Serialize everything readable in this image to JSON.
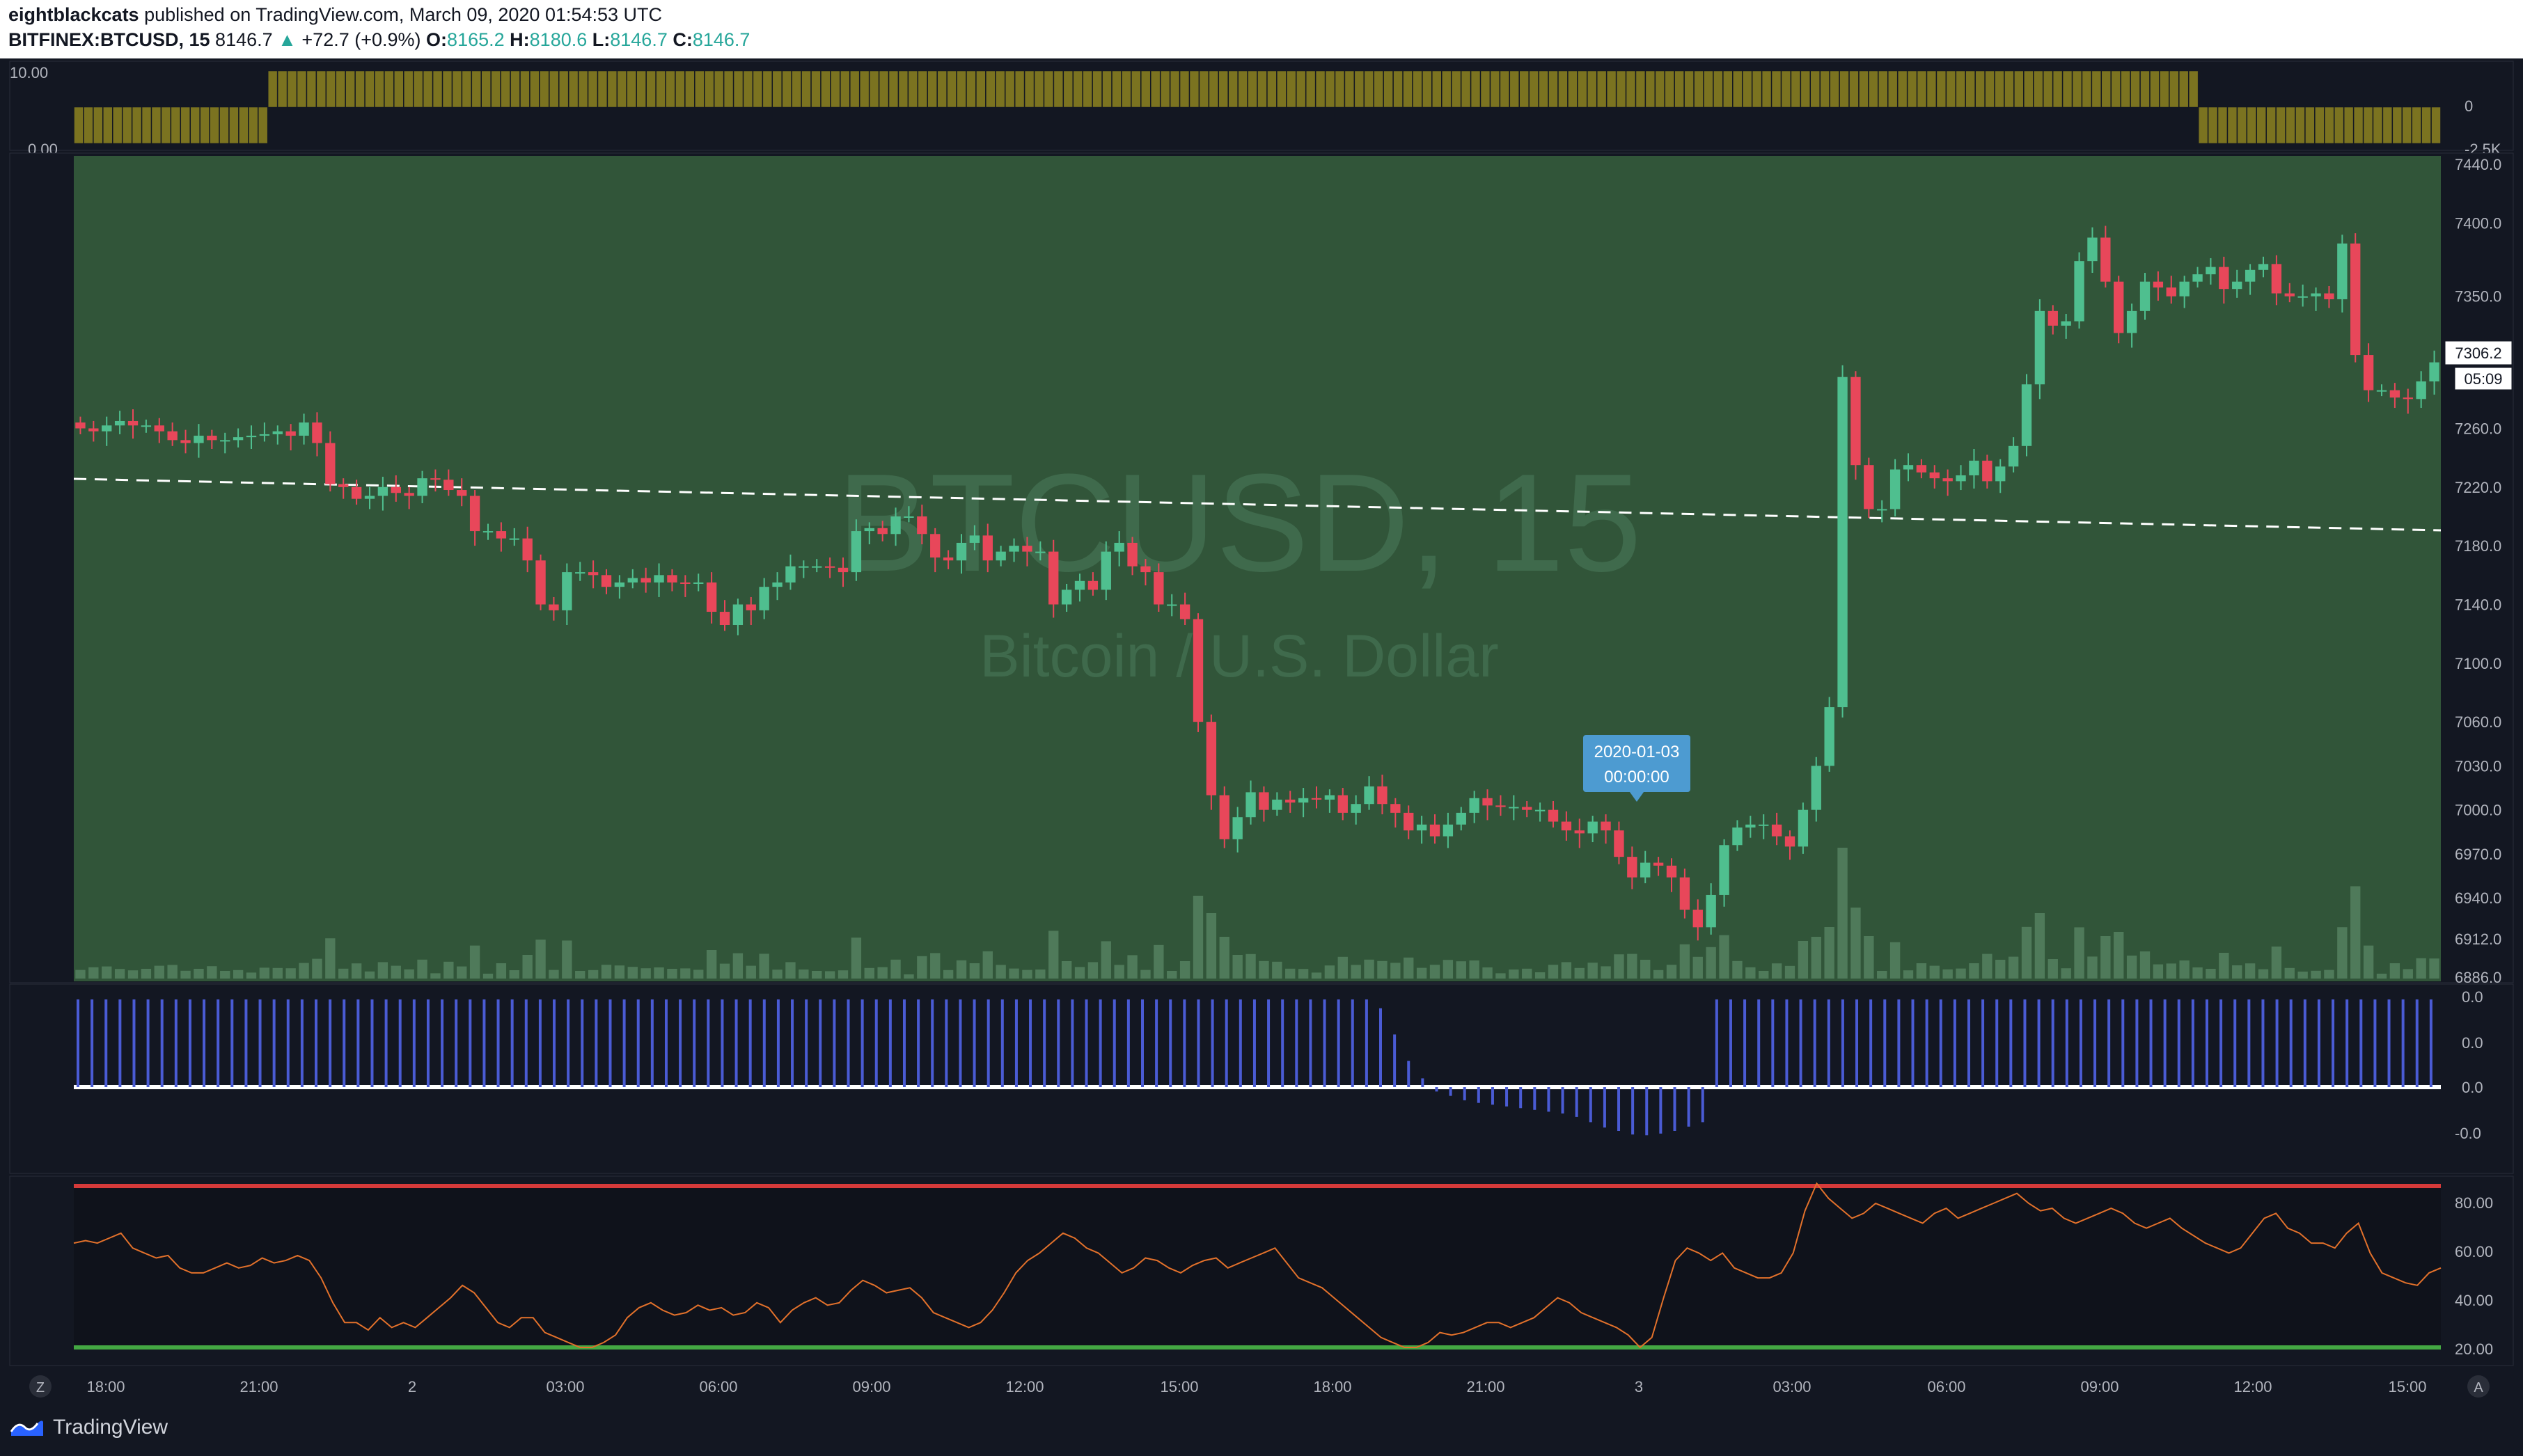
{
  "header": {
    "author": "eightblackcats",
    "published_text": "published on TradingView.com, March 09, 2020 01:54:53 UTC",
    "symbol": "BITFINEX:BTCUSD, 15",
    "price": "8146.7",
    "change_arrow": "▲",
    "change": "+72.7 (+0.9%)",
    "o_label": "O:",
    "o_value": "8165.2",
    "h_label": "H:",
    "h_value": "8180.6",
    "l_label": "L:",
    "l_value": "8146.7",
    "c_label": "C:",
    "c_value": "8146.7"
  },
  "watermark": {
    "symbol": "BTCUSD, 15",
    "description": "Bitcoin / U.S. Dollar"
  },
  "tooltip": {
    "date": "2020-01-03",
    "time": "00:00:00"
  },
  "price_tags": {
    "last_price": "7306.2",
    "countdown": "05:09"
  },
  "footer": {
    "logo_text": "TradingView",
    "z_button": "Z",
    "a_button": "A"
  },
  "colors": {
    "up": "#4fbf8f",
    "down": "#e8475a",
    "main_bg": "#315539",
    "osc_bar": "#7b7320",
    "histogram": "#4a5bd4",
    "rsi_line": "#e3712b",
    "rsi_upper": "#d63a3a",
    "rsi_lower": "#44a843"
  },
  "chart_data": [
    {
      "type": "bar",
      "title": "",
      "y_axis": {
        "ticks": [
          "10.00",
          "0.00",
          "0",
          "-2.5K"
        ]
      },
      "values": [
        -1.0,
        -1.0,
        -1.0,
        -1.0,
        -1.0,
        -1.0,
        -1.0,
        -1.0,
        -1.0,
        -1.0,
        -1.0,
        -1.0,
        -1.0,
        -1.0,
        -1.0,
        -1.0,
        -1.0,
        -1.0,
        -1.0,
        -1.0,
        1.0,
        1.0,
        1.0,
        1.0,
        1.0,
        1.0,
        1.0,
        1.0,
        1.0,
        1.0,
        1.0,
        1.0,
        1.0,
        1.0,
        1.0,
        1.0,
        1.0,
        1.0,
        1.0,
        1.0,
        1.0,
        1.0,
        1.0,
        1.0,
        1.0,
        1.0,
        1.0,
        1.0,
        1.0,
        1.0,
        1.0,
        1.0,
        1.0,
        1.0,
        1.0,
        1.0,
        1.0,
        1.0,
        1.0,
        1.0,
        1.0,
        1.0,
        1.0,
        1.0,
        1.0,
        1.0,
        1.0,
        1.0,
        1.0,
        1.0,
        1.0,
        1.0,
        1.0,
        1.0,
        1.0,
        1.0,
        1.0,
        1.0,
        1.0,
        1.0,
        1.0,
        1.0,
        1.0,
        1.0,
        1.0,
        1.0,
        1.0,
        1.0,
        1.0,
        1.0,
        1.0,
        1.0,
        1.0,
        1.0,
        1.0,
        1.0,
        1.0,
        1.0,
        1.0,
        1.0,
        1.0,
        1.0,
        1.0,
        1.0,
        1.0,
        1.0,
        1.0,
        1.0,
        1.0,
        1.0,
        1.0,
        1.0,
        1.0,
        1.0,
        1.0,
        1.0,
        1.0,
        1.0,
        1.0,
        1.0,
        1.0,
        1.0,
        1.0,
        1.0,
        1.0,
        1.0,
        1.0,
        1.0,
        1.0,
        1.0,
        1.0,
        1.0,
        1.0,
        1.0,
        1.0,
        1.0,
        1.0,
        1.0,
        1.0,
        1.0,
        1.0,
        1.0,
        1.0,
        1.0,
        1.0,
        1.0,
        1.0,
        1.0,
        1.0,
        1.0,
        1.0,
        1.0,
        1.0,
        1.0,
        1.0,
        1.0,
        1.0,
        1.0,
        1.0,
        1.0,
        1.0,
        1.0,
        1.0,
        1.0,
        1.0,
        1.0,
        1.0,
        1.0,
        1.0,
        1.0,
        1.0,
        1.0,
        1.0,
        1.0,
        1.0,
        1.0,
        1.0,
        1.0,
        1.0,
        1.0,
        1.0,
        1.0,
        1.0,
        1.0,
        1.0,
        1.0,
        1.0,
        1.0,
        1.0,
        1.0,
        1.0,
        1.0,
        1.0,
        1.0,
        1.0,
        1.0,
        1.0,
        1.0,
        1.0,
        1.0,
        1.0,
        1.0,
        1.0,
        1.0,
        1.0,
        1.0,
        1.0,
        1.0,
        1.0,
        1.0,
        1.0,
        1.0,
        1.0,
        1.0,
        1.0,
        1.0,
        1.0,
        1.0,
        1.0,
        -1.0,
        -1.0,
        -1.0,
        -1.0,
        -1.0,
        -1.0,
        -1.0,
        -1.0,
        -1.0,
        -1.0,
        -1.0,
        -1.0,
        -1.0,
        -1.0,
        -1.0,
        -1.0,
        -1.0,
        -1.0,
        -1.0,
        -1.0,
        -1.0,
        -1.0,
        -1.0,
        -1.0,
        -1.0
      ]
    },
    {
      "type": "candlestick",
      "title": "BITFINEX:BTCUSD, 15",
      "y_axis": {
        "ticks": [
          "7440.0",
          "7400.0",
          "7350.0",
          "7306.2",
          "7260.0",
          "7220.0",
          "7180.0",
          "7140.0",
          "7100.0",
          "7060.0",
          "7030.0",
          "7000.0",
          "6970.0",
          "6940.0",
          "6912.0",
          "6886.0"
        ]
      },
      "x_axis": {
        "ticks": [
          "18:00",
          "21:00",
          "2",
          "03:00",
          "06:00",
          "09:00",
          "12:00",
          "15:00",
          "18:00",
          "21:00",
          "3",
          "03:00",
          "06:00",
          "09:00",
          "12:00",
          "15:00"
        ]
      },
      "close": [
        7260,
        7258,
        7262,
        7265,
        7262,
        7262,
        7258,
        7252,
        7250,
        7255,
        7252,
        7252,
        7254,
        7255,
        7256,
        7258,
        7255,
        7264,
        7250,
        7222,
        7220,
        7212,
        7214,
        7220,
        7216,
        7214,
        7226,
        7225,
        7218,
        7214,
        7190,
        7190,
        7185,
        7185,
        7170,
        7140,
        7136,
        7162,
        7162,
        7160,
        7152,
        7155,
        7158,
        7155,
        7160,
        7155,
        7154,
        7155,
        7135,
        7126,
        7140,
        7136,
        7152,
        7155,
        7166,
        7166,
        7166,
        7165,
        7162,
        7190,
        7192,
        7188,
        7200,
        7200,
        7188,
        7172,
        7170,
        7182,
        7187,
        7170,
        7176,
        7180,
        7176,
        7176,
        7140,
        7150,
        7156,
        7150,
        7176,
        7182,
        7166,
        7162,
        7140,
        7140,
        7130,
        7060,
        7010,
        6980,
        6995,
        7012,
        7000,
        7007,
        7005,
        7008,
        7007,
        7010,
        6998,
        7004,
        7016,
        7004,
        6998,
        6986,
        6990,
        6982,
        6990,
        6998,
        7008,
        7003,
        7002,
        7002,
        7000,
        7000,
        6992,
        6986,
        6984,
        6992,
        6986,
        6968,
        6954,
        6964,
        6962,
        6954,
        6932,
        6920,
        6942,
        6976,
        6988,
        6990,
        6990,
        6982,
        6975,
        7000,
        7030,
        7070,
        7295,
        7235,
        7205,
        7205,
        7232,
        7235,
        7230,
        7226,
        7224,
        7228,
        7238,
        7224,
        7234,
        7248,
        7290,
        7340,
        7330,
        7333,
        7374,
        7390,
        7360,
        7325,
        7340,
        7360,
        7356,
        7350,
        7360,
        7365,
        7370,
        7355,
        7360,
        7368,
        7372,
        7352,
        7350,
        7350,
        7352,
        7348,
        7386,
        7310,
        7286,
        7286,
        7281,
        7280,
        7292,
        7305
      ],
      "volume_profile": "low volume bars with spikes near 17:00 (day 2) and 04:30 (day 3)"
    },
    {
      "type": "bar",
      "title": "",
      "y_axis": {
        "ticks": [
          "0.0",
          "0.0",
          "0.0",
          "-0.0"
        ]
      },
      "values": [
        1.0,
        1.0,
        1.0,
        1.0,
        1.0,
        1.0,
        1.0,
        1.0,
        1.0,
        1.0,
        1.0,
        1.0,
        1.0,
        1.0,
        1.0,
        1.0,
        1.0,
        1.0,
        1.0,
        1.0,
        1.0,
        1.0,
        1.0,
        1.0,
        1.0,
        1.0,
        1.0,
        1.0,
        1.0,
        1.0,
        1.0,
        1.0,
        1.0,
        1.0,
        1.0,
        1.0,
        1.0,
        1.0,
        1.0,
        1.0,
        1.0,
        1.0,
        1.0,
        1.0,
        1.0,
        1.0,
        1.0,
        1.0,
        1.0,
        1.0,
        1.0,
        1.0,
        1.0,
        1.0,
        1.0,
        1.0,
        1.0,
        1.0,
        1.0,
        1.0,
        1.0,
        1.0,
        1.0,
        1.0,
        1.0,
        1.0,
        1.0,
        1.0,
        1.0,
        1.0,
        1.0,
        1.0,
        1.0,
        1.0,
        1.0,
        1.0,
        1.0,
        1.0,
        1.0,
        1.0,
        1.0,
        1.0,
        1.0,
        1.0,
        1.0,
        1.0,
        1.0,
        1.0,
        1.0,
        1.0,
        1.0,
        1.0,
        1.0,
        0.9,
        0.6,
        0.3,
        0.1,
        -0.05,
        -0.1,
        -0.15,
        -0.18,
        -0.2,
        -0.22,
        -0.24,
        -0.26,
        -0.28,
        -0.3,
        -0.34,
        -0.4,
        -0.46,
        -0.5,
        -0.54,
        -0.55,
        -0.53,
        -0.5,
        -0.45,
        -0.4,
        1.0,
        1.0,
        1.0,
        1.0,
        1.0,
        1.0,
        1.0,
        1.0,
        1.0,
        1.0,
        1.0,
        1.0,
        1.0,
        1.0,
        1.0,
        1.0,
        1.0,
        1.0,
        1.0,
        1.0,
        1.0,
        1.0,
        1.0,
        1.0,
        1.0,
        1.0,
        1.0,
        1.0,
        1.0,
        1.0,
        1.0,
        1.0,
        1.0,
        1.0,
        1.0,
        1.0,
        1.0,
        1.0,
        1.0,
        1.0,
        1.0,
        1.0,
        1.0,
        1.0,
        1.0,
        1.0,
        1.0,
        1.0,
        1.0,
        1.0,
        1.0,
        1.0
      ]
    },
    {
      "type": "line",
      "title": "",
      "y_axis": {
        "ticks": [
          "80.00",
          "60.00",
          "40.00",
          "20.00"
        ]
      },
      "upper_level": 85,
      "lower_level": 20,
      "values": [
        62,
        63,
        62,
        64,
        66,
        60,
        58,
        56,
        57,
        52,
        50,
        50,
        52,
        54,
        52,
        53,
        56,
        54,
        55,
        57,
        55,
        48,
        38,
        30,
        30,
        27,
        32,
        28,
        30,
        28,
        32,
        36,
        40,
        45,
        42,
        36,
        30,
        28,
        32,
        32,
        26,
        24,
        22,
        20,
        20,
        22,
        25,
        32,
        36,
        38,
        35,
        33,
        34,
        37,
        35,
        36,
        33,
        34,
        38,
        36,
        30,
        35,
        38,
        40,
        37,
        38,
        43,
        47,
        45,
        42,
        43,
        44,
        40,
        34,
        32,
        30,
        28,
        30,
        35,
        42,
        50,
        55,
        58,
        62,
        66,
        64,
        60,
        58,
        54,
        50,
        52,
        56,
        55,
        52,
        50,
        53,
        55,
        56,
        52,
        54,
        56,
        58,
        60,
        54,
        48,
        46,
        44,
        40,
        36,
        32,
        28,
        24,
        22,
        20,
        20,
        22,
        26,
        25,
        26,
        28,
        30,
        30,
        28,
        30,
        32,
        36,
        40,
        38,
        34,
        32,
        30,
        28,
        25,
        20,
        24,
        40,
        55,
        60,
        58,
        55,
        58,
        52,
        50,
        48,
        48,
        50,
        58,
        75,
        86,
        80,
        76,
        72,
        74,
        78,
        76,
        74,
        72,
        70,
        74,
        76,
        72,
        74,
        76,
        78,
        80,
        82,
        78,
        75,
        76,
        72,
        70,
        72,
        74,
        76,
        74,
        70,
        68,
        70,
        72,
        68,
        65,
        62,
        60,
        58,
        60,
        66,
        72,
        74,
        68,
        66,
        62,
        62,
        60,
        66,
        70,
        58,
        50,
        48,
        46,
        45,
        50,
        52
      ],
      "upper_color": "#d63a3a",
      "lower_color": "#44a843"
    }
  ]
}
